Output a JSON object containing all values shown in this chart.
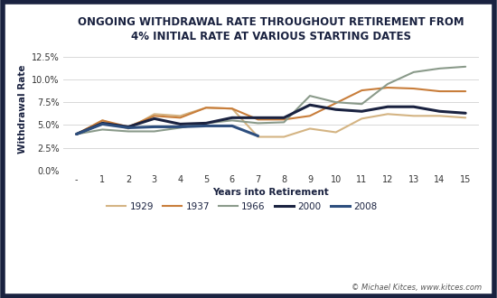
{
  "title": "ONGOING WITHDRAWAL RATE THROUGHOUT RETIREMENT FROM\n4% INITIAL RATE AT VARIOUS STARTING DATES",
  "xlabel": "Years into Retirement",
  "ylabel": "Withdrawal Rate",
  "x_labels": [
    "-",
    "1",
    "2",
    "3",
    "4",
    "5",
    "6",
    "7",
    "8",
    "9",
    "10",
    "11",
    "12",
    "13",
    "14",
    "15"
  ],
  "x_values": [
    0,
    1,
    2,
    3,
    4,
    5,
    6,
    7,
    8,
    9,
    10,
    11,
    12,
    13,
    14,
    15
  ],
  "series": {
    "1929": {
      "color": "#d4b483",
      "linewidth": 1.5,
      "values": [
        0.04,
        0.055,
        0.046,
        0.062,
        0.06,
        0.069,
        0.068,
        0.037,
        0.037,
        0.046,
        0.042,
        0.057,
        0.062,
        0.06,
        0.06,
        0.058
      ]
    },
    "1937": {
      "color": "#c87d3a",
      "linewidth": 1.5,
      "values": [
        0.04,
        0.055,
        0.048,
        0.06,
        0.058,
        0.069,
        0.068,
        0.056,
        0.056,
        0.06,
        0.074,
        0.088,
        0.091,
        0.09,
        0.087,
        0.087
      ]
    },
    "1966": {
      "color": "#8a9a8a",
      "linewidth": 1.5,
      "values": [
        0.04,
        0.045,
        0.043,
        0.043,
        0.047,
        0.052,
        0.055,
        0.052,
        0.053,
        0.082,
        0.075,
        0.073,
        0.095,
        0.108,
        0.112,
        0.114
      ]
    },
    "2000": {
      "color": "#1a2240",
      "linewidth": 2.2,
      "values": [
        0.04,
        0.052,
        0.048,
        0.057,
        0.051,
        0.052,
        0.058,
        0.058,
        0.058,
        0.072,
        0.067,
        0.065,
        0.07,
        0.07,
        0.065,
        0.063
      ]
    },
    "2008": {
      "color": "#2d4e7e",
      "linewidth": 2.2,
      "values": [
        0.04,
        0.051,
        0.047,
        0.048,
        0.048,
        0.049,
        0.049,
        0.038,
        null,
        null,
        null,
        null,
        null,
        null,
        null,
        null
      ]
    }
  },
  "ylim": [
    0.0,
    0.135
  ],
  "yticks": [
    0.0,
    0.025,
    0.05,
    0.075,
    0.1,
    0.125
  ],
  "background_color": "#ffffff",
  "border_color": "#1a2240",
  "grid_color": "#d8d8d8",
  "title_color": "#1a2240",
  "title_fontsize": 8.5,
  "axis_label_fontsize": 7.5,
  "tick_fontsize": 7,
  "legend_fontsize": 7.5,
  "watermark": "© Michael Kitces, www.kitces.com"
}
